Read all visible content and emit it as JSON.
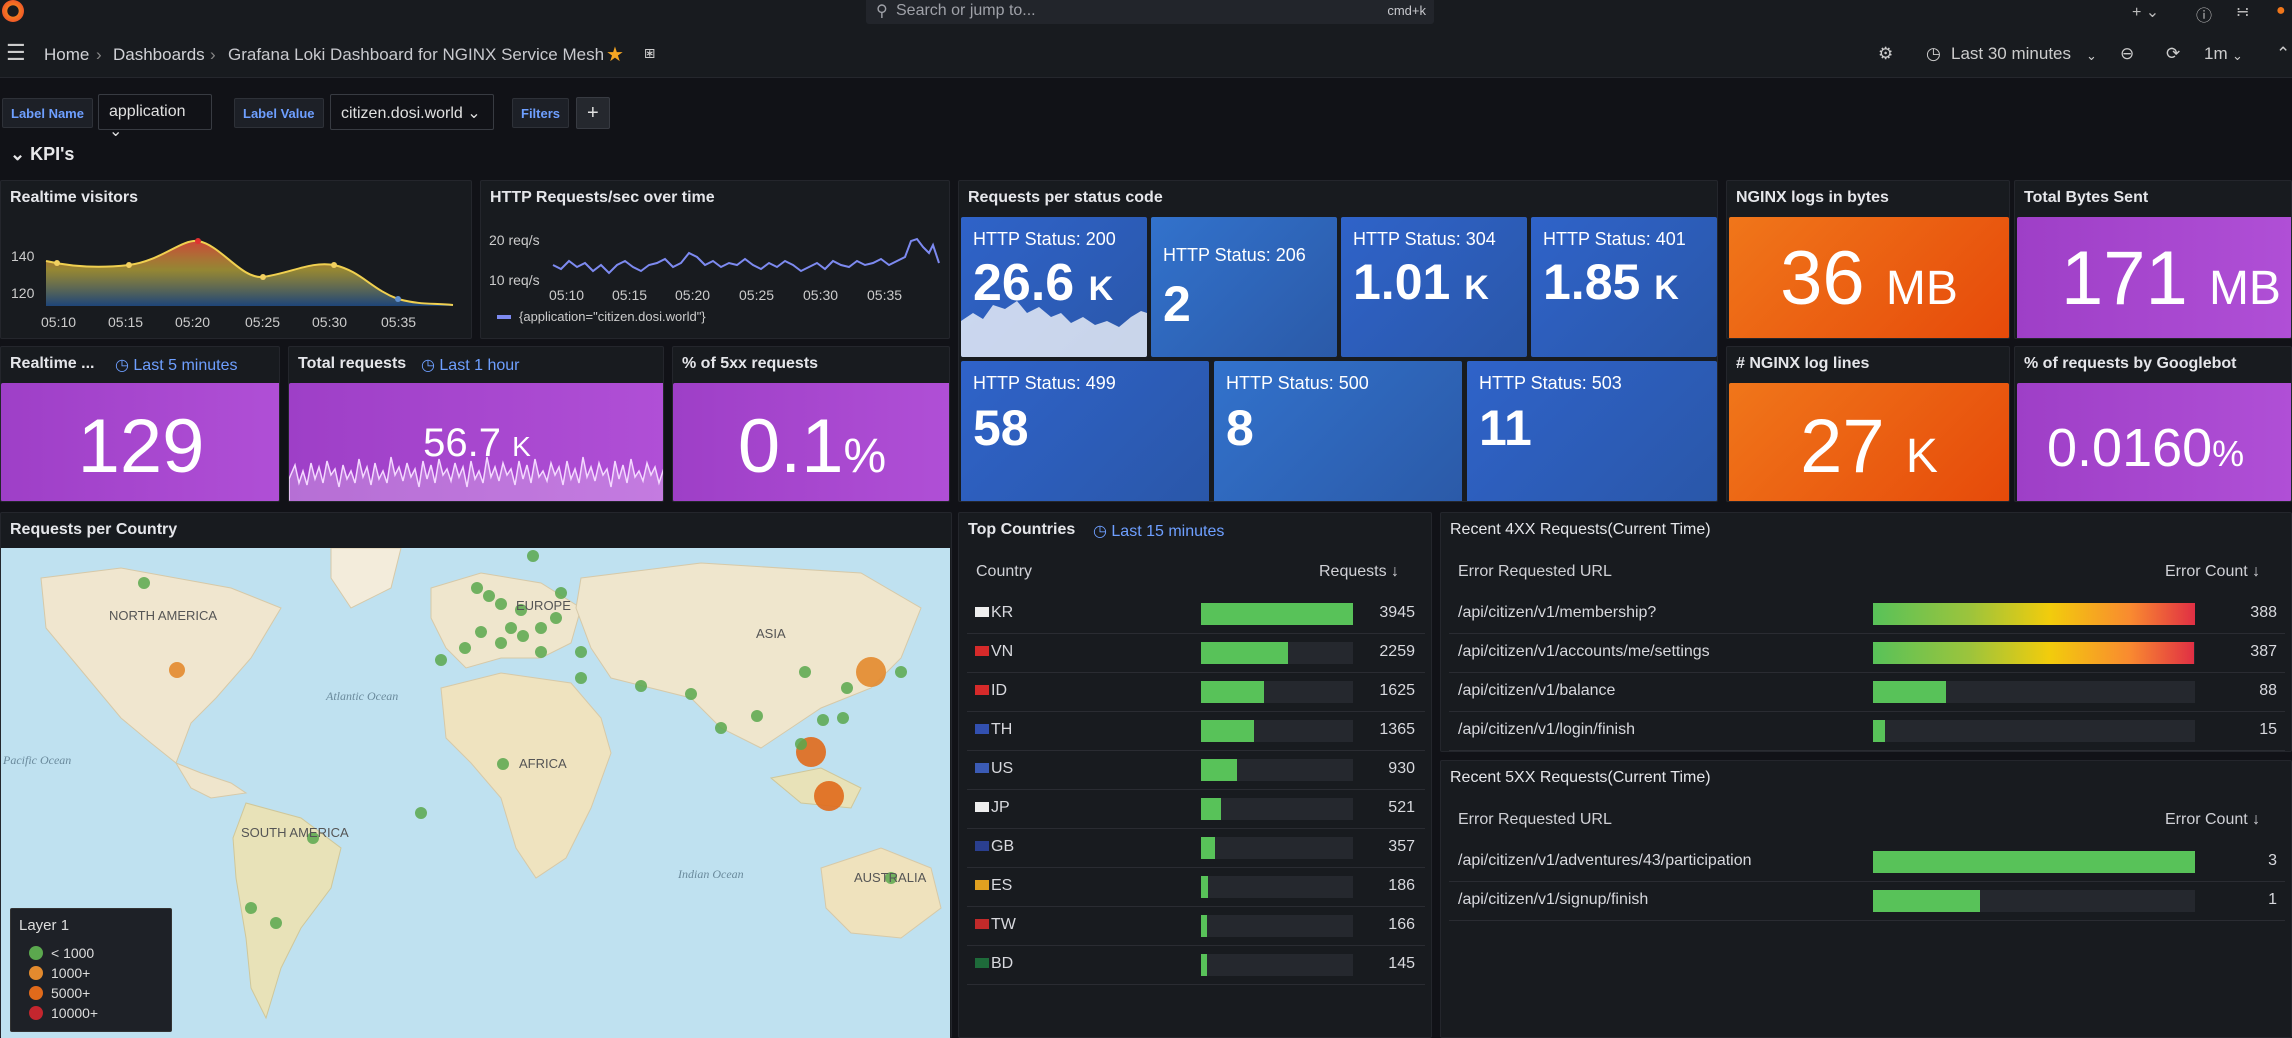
{
  "search": {
    "placeholder": "Search or jump to...",
    "shortcut": "cmd+k"
  },
  "breadcrumb": {
    "home": "Home",
    "dashboards": "Dashboards",
    "title": "Grafana Loki Dashboard for NGINX Service Mesh"
  },
  "toolbar": {
    "time_range": "Last 30 minutes",
    "refresh": "1m"
  },
  "variables": {
    "label_name_label": "Label Name",
    "label_name_value": "application",
    "label_value_label": "Label Value",
    "label_value_value": "citizen.dosi.world",
    "filters_label": "Filters",
    "add_label": "+"
  },
  "row": {
    "title": "KPI's"
  },
  "realtime_visitors": {
    "title": "Realtime visitors",
    "y_ticks": [
      "140",
      "120"
    ],
    "x_ticks": [
      "05:10",
      "05:15",
      "05:20",
      "05:25",
      "05:30",
      "05:35"
    ]
  },
  "http_rps": {
    "title": "HTTP Requests/sec over time",
    "y_ticks": [
      "20 req/s",
      "10 req/s"
    ],
    "x_ticks": [
      "05:10",
      "05:15",
      "05:20",
      "05:25",
      "05:30",
      "05:35"
    ],
    "legend": "{application=\"citizen.dosi.world\"}"
  },
  "realtime_short": {
    "title": "Realtime ...",
    "time": "Last 5 minutes",
    "value": "129"
  },
  "total_requests": {
    "title": "Total requests",
    "time": "Last 1 hour",
    "value": "56.7",
    "unit": "K"
  },
  "pct_5xx": {
    "title": "% of 5xx requests",
    "value": "0.1",
    "unit": "%"
  },
  "status_codes": {
    "title": "Requests per status code",
    "tiles": [
      {
        "label": "HTTP Status: 200",
        "value": "26.6",
        "unit": "K"
      },
      {
        "label": "HTTP Status: 206",
        "value": "2",
        "unit": ""
      },
      {
        "label": "HTTP Status: 304",
        "value": "1.01",
        "unit": "K"
      },
      {
        "label": "HTTP Status: 401",
        "value": "1.85",
        "unit": "K"
      },
      {
        "label": "HTTP Status: 499",
        "value": "58",
        "unit": ""
      },
      {
        "label": "HTTP Status: 500",
        "value": "8",
        "unit": ""
      },
      {
        "label": "HTTP Status: 503",
        "value": "11",
        "unit": ""
      }
    ]
  },
  "nginx_bytes": {
    "title": "NGINX logs in bytes",
    "value": "36",
    "unit": "MB"
  },
  "bytes_sent": {
    "title": "Total Bytes Sent",
    "value": "171",
    "unit": "MB"
  },
  "log_lines": {
    "title": "# NGINX log lines",
    "value": "27",
    "unit": "K"
  },
  "googlebot": {
    "title": "% of requests by Googlebot",
    "value": "0.0160",
    "unit": "%"
  },
  "map": {
    "title": "Requests per Country",
    "labels": {
      "na": "NORTH AMERICA",
      "eu": "EUROPE",
      "asia": "ASIA",
      "africa": "AFRICA",
      "sa": "SOUTH AMERICA",
      "au": "AUSTRALIA",
      "atlantic": "Atlantic Ocean",
      "pacific": "Pacific Ocean",
      "indian": "Indian Ocean"
    },
    "legend": {
      "title": "Layer 1",
      "items": [
        "< 1000",
        "1000+",
        "5000+",
        "10000+"
      ],
      "colors": [
        "#5ba84e",
        "#e38a2e",
        "#e06a1b",
        "#c4262e"
      ]
    }
  },
  "top_countries": {
    "title": "Top Countries",
    "time": "Last 15 minutes",
    "col_country": "Country",
    "col_requests": "Requests",
    "rows": [
      {
        "code": "KR",
        "value": 3945
      },
      {
        "code": "VN",
        "value": 2259
      },
      {
        "code": "ID",
        "value": 1625
      },
      {
        "code": "TH",
        "value": 1365
      },
      {
        "code": "US",
        "value": 930
      },
      {
        "code": "JP",
        "value": 521
      },
      {
        "code": "GB",
        "value": 357
      },
      {
        "code": "ES",
        "value": 186
      },
      {
        "code": "TW",
        "value": 166
      },
      {
        "code": "BD",
        "value": 145
      }
    ]
  },
  "req4xx": {
    "title": "Recent 4XX Requests(Current Time)",
    "col_url": "Error Requested URL",
    "col_count": "Error Count",
    "rows": [
      {
        "url": "/api/citizen/v1/membership?",
        "count": 388
      },
      {
        "url": "/api/citizen/v1/accounts/me/settings",
        "count": 387
      },
      {
        "url": "/api/citizen/v1/balance",
        "count": 88
      },
      {
        "url": "/api/citizen/v1/login/finish",
        "count": 15
      }
    ]
  },
  "req5xx": {
    "title": "Recent 5XX Requests(Current Time)",
    "col_url": "Error Requested URL",
    "col_count": "Error Count",
    "rows": [
      {
        "url": "/api/citizen/v1/adventures/43/participation",
        "count": 3
      },
      {
        "url": "/api/citizen/v1/signup/finish",
        "count": 1
      }
    ]
  }
}
